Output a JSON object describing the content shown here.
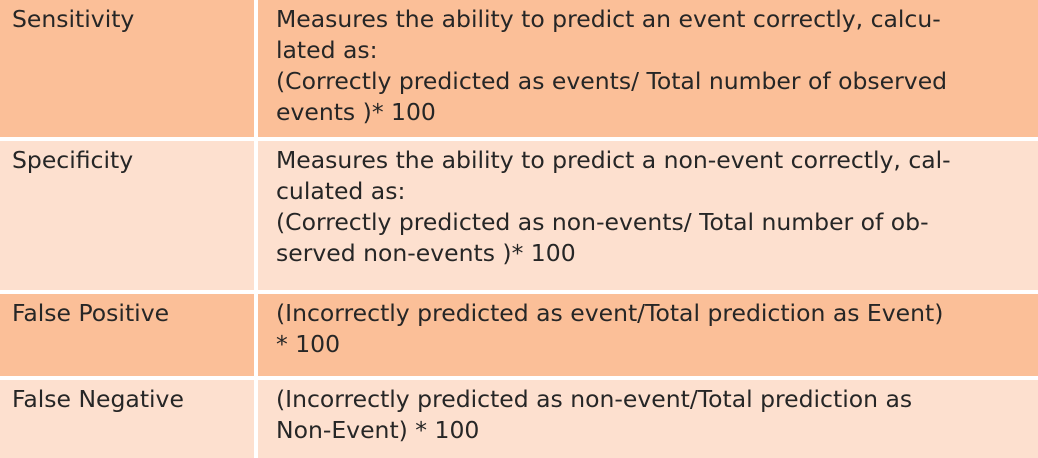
{
  "rows": [
    {
      "term": "Sensitivity",
      "lines": [
        "Measures the ability to predict an event correctly, calcu-",
        "lated as:",
        "(Correctly predicted as events/ Total number of observed",
        "events )* 100"
      ]
    },
    {
      "term": "Specificity",
      "lines": [
        "Measures the ability to predict a non-event correctly, cal-",
        "culated as:",
        "(Correctly predicted as non-events/ Total number of ob-",
        "served non-events )* 100"
      ]
    },
    {
      "term": "False Positive",
      "lines": [
        "(Incorrectly predicted as event/Total prediction as Event)",
        "* 100"
      ]
    },
    {
      "term": "False Negative",
      "lines": [
        "(Incorrectly predicted as non-event/Total prediction as",
        "Non-Event) * 100"
      ]
    }
  ],
  "colors": {
    "row_dark": "#fbbf98",
    "row_light": "#fde0cf",
    "separator": "#ffffff",
    "text": "#262626"
  }
}
